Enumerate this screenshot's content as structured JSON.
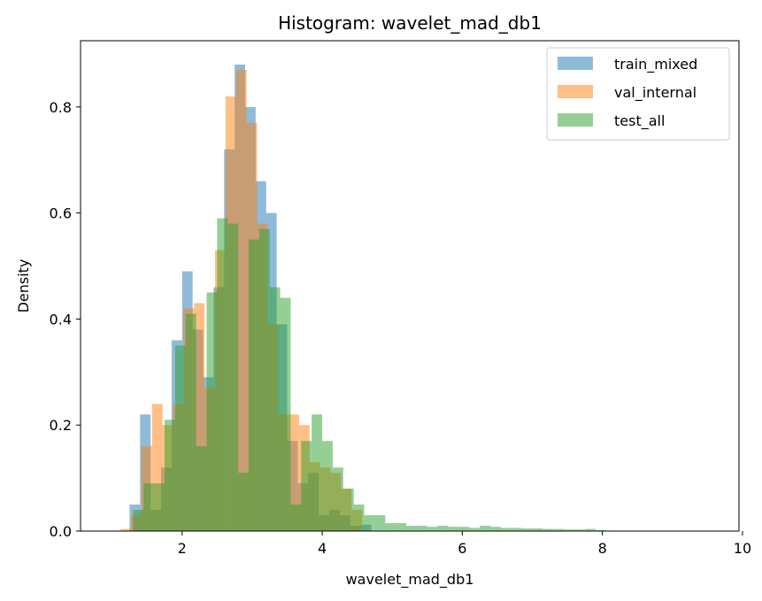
{
  "chart_data": {
    "type": "histogram",
    "title": "Histogram: wavelet_mad_db1",
    "xlabel": "wavelet_mad_db1",
    "ylabel": "Density",
    "xlim": [
      0.55,
      9.95
    ],
    "ylim": [
      0,
      0.925
    ],
    "x_ticks": [
      2,
      4,
      6,
      8,
      10
    ],
    "y_ticks": [
      0.0,
      0.2,
      0.4,
      0.6,
      0.8
    ],
    "grid": false,
    "legend_position": "top-right",
    "bin_width": 0.15,
    "series": [
      {
        "name": "train_mixed",
        "color": "#1f77b4",
        "opacity": 0.5,
        "bins": [
          [
            1.25,
            0.05
          ],
          [
            1.4,
            0.22
          ],
          [
            1.55,
            0.04
          ],
          [
            1.7,
            0.12
          ],
          [
            1.85,
            0.36
          ],
          [
            2.0,
            0.49
          ],
          [
            2.15,
            0.38
          ],
          [
            2.3,
            0.29
          ],
          [
            2.45,
            0.46
          ],
          [
            2.6,
            0.72
          ],
          [
            2.75,
            0.88
          ],
          [
            2.9,
            0.8
          ],
          [
            3.05,
            0.66
          ],
          [
            3.2,
            0.6
          ],
          [
            3.35,
            0.39
          ],
          [
            3.5,
            0.17
          ],
          [
            3.65,
            0.09
          ],
          [
            3.8,
            0.11
          ],
          [
            3.95,
            0.03
          ],
          [
            4.1,
            0.04
          ],
          [
            4.25,
            0.03
          ],
          [
            4.4,
            0.01
          ],
          [
            4.55,
            0.012
          ]
        ]
      },
      {
        "name": "val_internal",
        "color": "#ff7f0e",
        "opacity": 0.5,
        "bins": [
          [
            1.12,
            0.004
          ],
          [
            1.27,
            0.03
          ],
          [
            1.42,
            0.16
          ],
          [
            1.57,
            0.24
          ],
          [
            1.72,
            0.2
          ],
          [
            1.87,
            0.24
          ],
          [
            2.02,
            0.42
          ],
          [
            2.17,
            0.43
          ],
          [
            2.32,
            0.27
          ],
          [
            2.47,
            0.53
          ],
          [
            2.62,
            0.82
          ],
          [
            2.77,
            0.87
          ],
          [
            2.92,
            0.77
          ],
          [
            3.07,
            0.58
          ],
          [
            3.22,
            0.39
          ],
          [
            3.37,
            0.22
          ],
          [
            3.52,
            0.22
          ],
          [
            3.67,
            0.2
          ],
          [
            3.82,
            0.13
          ],
          [
            3.97,
            0.12
          ],
          [
            4.12,
            0.11
          ],
          [
            4.27,
            0.08
          ],
          [
            4.42,
            0.04
          ]
        ]
      },
      {
        "name": "test_all",
        "color": "#2ca02c",
        "opacity": 0.5,
        "bins": [
          [
            1.3,
            0.04
          ],
          [
            1.45,
            0.09
          ],
          [
            1.6,
            0.09
          ],
          [
            1.75,
            0.21
          ],
          [
            1.9,
            0.35
          ],
          [
            2.05,
            0.41
          ],
          [
            2.2,
            0.16
          ],
          [
            2.35,
            0.45
          ],
          [
            2.5,
            0.59
          ],
          [
            2.65,
            0.58
          ],
          [
            2.8,
            0.11
          ],
          [
            2.95,
            0.55
          ],
          [
            3.1,
            0.57
          ],
          [
            3.25,
            0.46
          ],
          [
            3.4,
            0.44
          ],
          [
            3.55,
            0.05
          ],
          [
            3.7,
            0.17
          ],
          [
            3.85,
            0.22
          ],
          [
            4.0,
            0.17
          ],
          [
            4.15,
            0.12
          ],
          [
            4.3,
            0.08
          ],
          [
            4.45,
            0.05
          ],
          [
            4.6,
            0.03
          ],
          [
            4.75,
            0.03
          ],
          [
            4.9,
            0.015
          ],
          [
            5.05,
            0.015
          ],
          [
            5.2,
            0.01
          ],
          [
            5.35,
            0.01
          ],
          [
            5.5,
            0.008
          ],
          [
            5.65,
            0.01
          ],
          [
            5.8,
            0.008
          ],
          [
            5.95,
            0.008
          ],
          [
            6.1,
            0.006
          ],
          [
            6.25,
            0.01
          ],
          [
            6.4,
            0.008
          ],
          [
            6.55,
            0.006
          ],
          [
            6.7,
            0.006
          ],
          [
            6.85,
            0.005
          ],
          [
            7.0,
            0.005
          ],
          [
            7.15,
            0.004
          ],
          [
            7.3,
            0.004
          ],
          [
            7.45,
            0.003
          ],
          [
            7.6,
            0.003
          ],
          [
            7.75,
            0.004
          ],
          [
            7.9,
            0.002
          ]
        ]
      }
    ]
  }
}
